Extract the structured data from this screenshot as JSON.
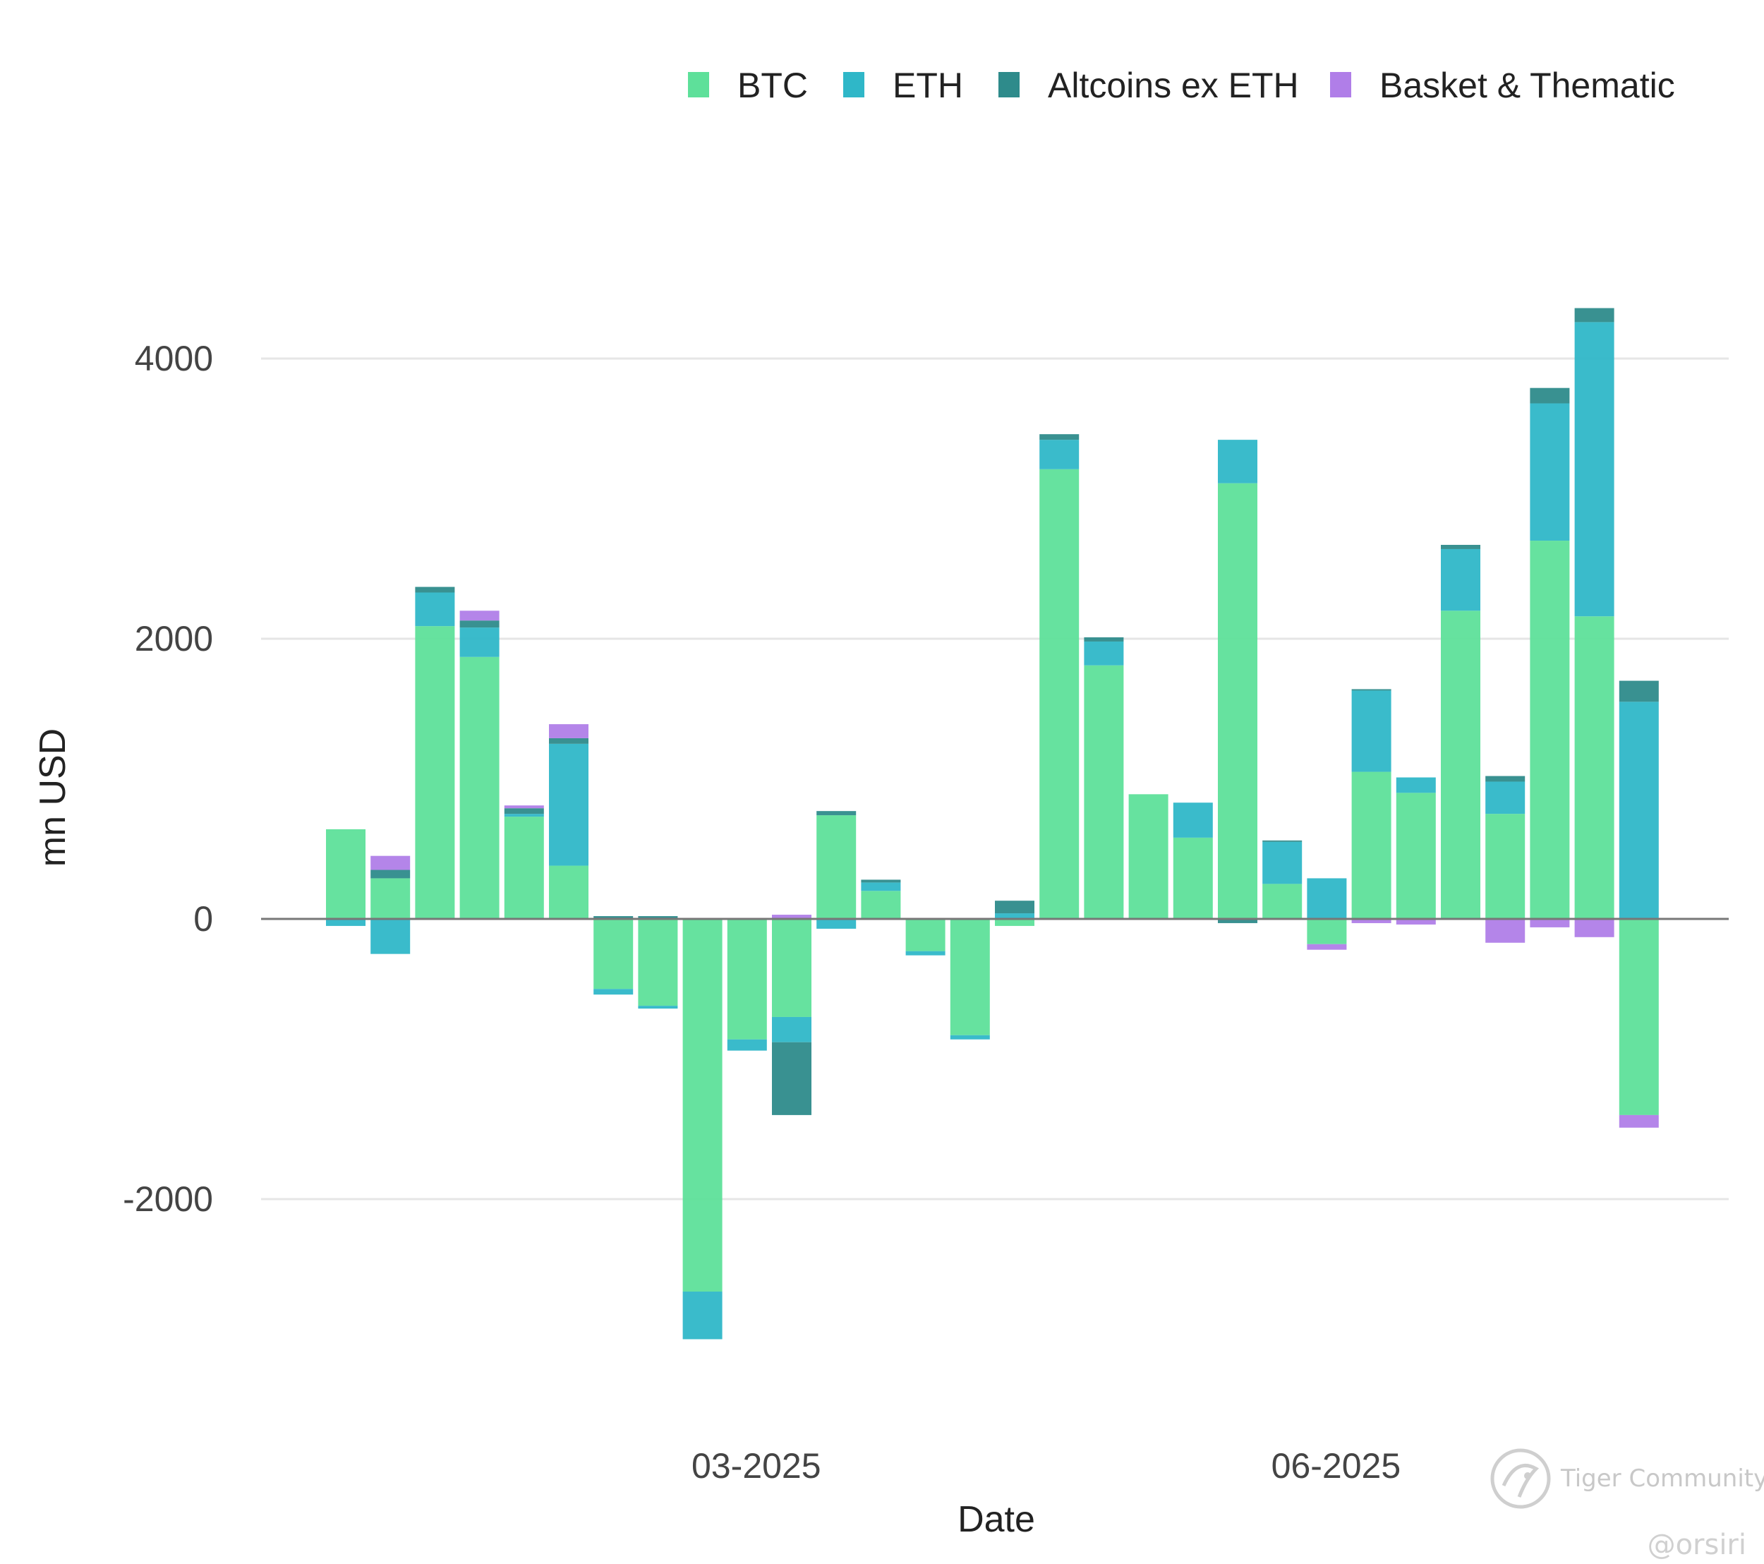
{
  "colors": {
    "BTC": "#5ee09a",
    "ETH": "#2fb7c8",
    "Altcoins ex ETH": "#2e8b8b",
    "Basket & Thematic": "#b07ee8",
    "grid": "#e6e6e6",
    "zero": "#777777"
  },
  "watermark": {
    "brand": "Tiger Community",
    "handle": "@orsiri"
  },
  "chart_data": {
    "type": "bar",
    "stacked": true,
    "title": "",
    "xlabel": "Date",
    "ylabel": "mn USD",
    "ylim": [
      -3200,
      4700
    ],
    "yticks": [
      {
        "value": 4000,
        "label": "4000"
      },
      {
        "value": 2000,
        "label": "2000"
      },
      {
        "value": 0,
        "label": "0"
      },
      {
        "value": -2000,
        "label": "-2000"
      }
    ],
    "xticks": [
      {
        "index": 9,
        "label": "03-2025"
      },
      {
        "index": 22,
        "label": "06-2025"
      }
    ],
    "grid": true,
    "legend_position": "top-right",
    "series_order": [
      "BTC",
      "ETH",
      "Altcoins ex ETH",
      "Basket & Thematic"
    ],
    "series": [
      {
        "name": "BTC",
        "values": [
          640,
          290,
          2090,
          1870,
          730,
          380,
          -500,
          -620,
          -2660,
          -860,
          -700,
          740,
          200,
          -230,
          -830,
          -50,
          3210,
          1810,
          890,
          580,
          3110,
          250,
          -180,
          1050,
          900,
          2200,
          750,
          2700,
          2160,
          -1400
        ]
      },
      {
        "name": "ETH",
        "values": [
          -50,
          -250,
          240,
          210,
          20,
          870,
          -40,
          -20,
          -340,
          -80,
          -180,
          -70,
          60,
          -30,
          -30,
          40,
          210,
          170,
          0,
          250,
          310,
          300,
          290,
          580,
          110,
          440,
          230,
          980,
          2100,
          1550
        ]
      },
      {
        "name": "Altcoins ex ETH",
        "values": [
          0,
          60,
          40,
          50,
          40,
          40,
          20,
          20,
          0,
          0,
          -520,
          30,
          20,
          0,
          0,
          90,
          40,
          30,
          0,
          0,
          -30,
          10,
          0,
          10,
          0,
          30,
          40,
          110,
          100,
          150
        ]
      },
      {
        "name": "Basket & Thematic",
        "values": [
          0,
          100,
          0,
          70,
          20,
          100,
          0,
          0,
          0,
          0,
          30,
          0,
          0,
          0,
          0,
          0,
          0,
          0,
          0,
          0,
          0,
          0,
          -40,
          -30,
          -40,
          0,
          -170,
          -60,
          -130,
          -90
        ]
      }
    ]
  }
}
